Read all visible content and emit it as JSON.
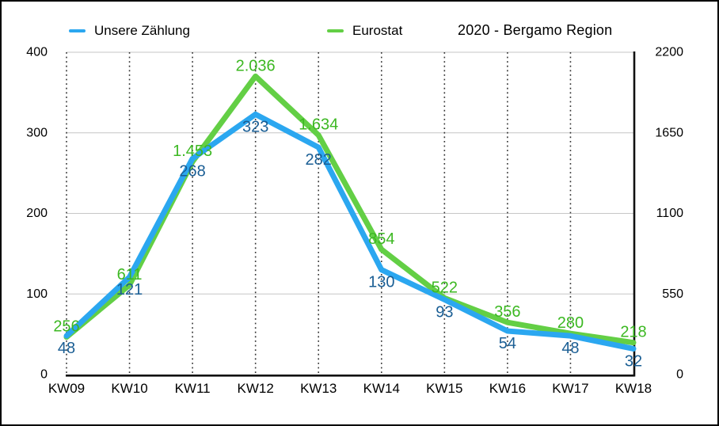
{
  "header": {
    "title": "2020 - Bergamo Region",
    "legend": [
      {
        "label": "Unsere Zählung",
        "color": "#2ba7f0"
      },
      {
        "label": "Eurostat",
        "color": "#63cf45"
      }
    ]
  },
  "chart_data": {
    "type": "line",
    "title": "2020 - Bergamo Region",
    "categories": [
      "KW09",
      "KW10",
      "KW11",
      "KW12",
      "KW13",
      "KW14",
      "KW15",
      "KW16",
      "KW17",
      "KW18"
    ],
    "series": [
      {
        "name": "Unsere Zählung",
        "axis": "left",
        "color": "#2ba7f0",
        "label_color": "#1a5e94",
        "label_position": "below",
        "values": [
          48,
          121,
          268,
          323,
          282,
          130,
          93,
          54,
          48,
          32
        ],
        "labels": [
          "48",
          "121",
          "268",
          "323",
          "282",
          "130",
          "93",
          "54",
          "48",
          "32"
        ]
      },
      {
        "name": "Eurostat",
        "axis": "right",
        "color": "#63cf45",
        "label_color": "#3cb822",
        "label_position": "above",
        "values": [
          256,
          611,
          1453,
          2036,
          1634,
          854,
          522,
          356,
          280,
          218
        ],
        "labels": [
          "256",
          "611",
          "1.453",
          "2.036",
          "1.634",
          "854",
          "522",
          "356",
          "280",
          "218"
        ]
      }
    ],
    "left_axis": {
      "min": 0,
      "max": 400,
      "ticks": [
        0,
        100,
        200,
        300,
        400
      ]
    },
    "right_axis": {
      "min": 0,
      "max": 2200,
      "ticks": [
        0,
        550,
        1100,
        1650,
        2200
      ]
    },
    "grid": {
      "horizontal": "solid-gray",
      "vertical": "dotted"
    },
    "legend_position": "top",
    "colors": {
      "gridline_gray": "#c6c6c6",
      "gridline_dotted": "#333333",
      "axis_black": "#111111",
      "tick_label": "#000000"
    }
  }
}
